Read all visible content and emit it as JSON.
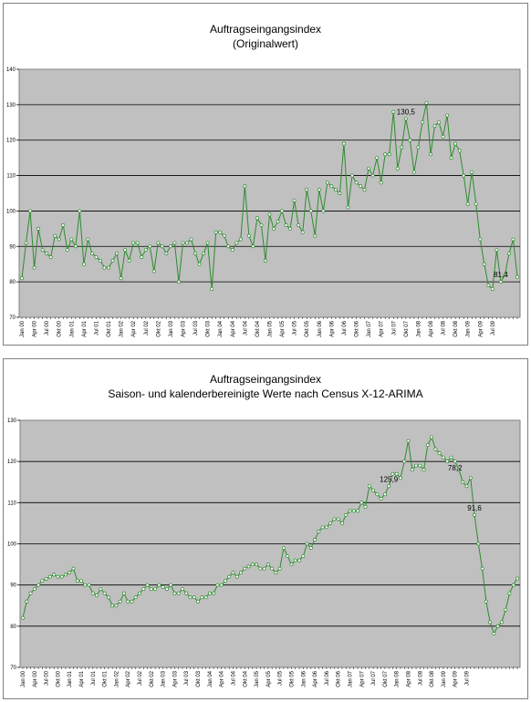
{
  "chart_data": [
    {
      "type": "line",
      "title": "Auftragseingangsindex",
      "subtitle": "(Originalwert)",
      "ylim": [
        70,
        140
      ],
      "yticks": [
        70,
        80,
        90,
        100,
        110,
        120,
        130,
        140
      ],
      "grid": true,
      "colors": {
        "line": "#2e8b2e",
        "marker_fill": "#ffffff",
        "plot_bg": "#c0c0c0",
        "grid": "#000000"
      },
      "xtick_labels": [
        "Jan 00",
        "Apr 00",
        "Jul 00",
        "Okt 00",
        "Jan 01",
        "Apr 01",
        "Jul 01",
        "Okt 01",
        "Jan 02",
        "Apr 02",
        "Jul 02",
        "Okt 02",
        "Jan 03",
        "Apr 03",
        "Jul 03",
        "Okt 03",
        "Jan 04",
        "Apr 04",
        "Jul 04",
        "Okt 04",
        "Jan 05",
        "Apr 05",
        "Jul 05",
        "Okt 05",
        "Jan 06",
        "Apr 06",
        "Jul 06",
        "Okt 06",
        "Jan 07",
        "Apr 07",
        "Jul 07",
        "Okt 07",
        "Jan 08",
        "Apr 08",
        "Jul 08",
        "Okt 08",
        "Jan 09",
        "Apr 09",
        "Jul 09"
      ],
      "annotations": [
        {
          "label": "130,5",
          "index": 93
        },
        {
          "label": "81,4",
          "index": 116
        }
      ],
      "series": [
        {
          "values": [
            81,
            91,
            100,
            84,
            95,
            89,
            88,
            87,
            93,
            92,
            96,
            89,
            92,
            90,
            100,
            85,
            92,
            88,
            87,
            86,
            84,
            84,
            86,
            88,
            81,
            89,
            86,
            91,
            91,
            87,
            89,
            90,
            83,
            91,
            90,
            88,
            90,
            91,
            80,
            91,
            91,
            92,
            88,
            85,
            88,
            91,
            78,
            94,
            94,
            93,
            90,
            89,
            91,
            92,
            107,
            93,
            90,
            98,
            96,
            86,
            99,
            95,
            97,
            100,
            96,
            95,
            103,
            96,
            94,
            106,
            100,
            93,
            106,
            100,
            108,
            107,
            106,
            105,
            119,
            101,
            110,
            108,
            107,
            106,
            112,
            110,
            115,
            108,
            116,
            116,
            128,
            112,
            118,
            126,
            120,
            111,
            118,
            125,
            130.5,
            116,
            124,
            125,
            121,
            127,
            115,
            119,
            117,
            110,
            102,
            111,
            102,
            92,
            85,
            79,
            78,
            89,
            80,
            82,
            88,
            92,
            81.4
          ]
        }
      ]
    },
    {
      "type": "line",
      "title": "Auftragseingangsindex",
      "subtitle": "Saison- und kalenderbereinigte Werte nach Census X-12-ARIMA",
      "ylim": [
        70,
        130
      ],
      "yticks": [
        70,
        80,
        90,
        100,
        110,
        120,
        130
      ],
      "grid": true,
      "colors": {
        "line": "#2e8b2e",
        "marker_fill": "#ffffff",
        "plot_bg": "#c0c0c0",
        "grid": "#000000"
      },
      "xtick_labels": [
        "Jan 00",
        "Apr 00",
        "Jul 00",
        "Okt 00",
        "Jan 01",
        "Apr 01",
        "Jul 01",
        "Okt 01",
        "Jan 02",
        "Apr 02",
        "Jul 02",
        "Okt 02",
        "Jan 03",
        "Apr 03",
        "Jul 03",
        "Okt 03",
        "Jan 04",
        "Apr 04",
        "Jul 04",
        "Okt 04",
        "Jan 05",
        "Apr 05",
        "Jul 05",
        "Okt 05",
        "Jan 06",
        "Apr 06",
        "Jul 06",
        "Okt 06",
        "Jan 07",
        "Apr 07",
        "Jul 07",
        "Okt 07",
        "Jan 08",
        "Apr 08",
        "Jul 08",
        "Okt 08",
        "Jan 09",
        "Apr 09",
        "Jul 09"
      ],
      "annotations": [
        {
          "label": "125,9",
          "index": 94,
          "position": "above"
        },
        {
          "label": "78,2",
          "index": 111,
          "position": "below"
        },
        {
          "label": "91,6",
          "index": 116,
          "position": "above"
        }
      ],
      "series": [
        {
          "values": [
            82,
            86,
            88,
            89,
            90,
            91,
            91.5,
            92,
            92.5,
            92,
            92,
            92.5,
            93,
            94,
            91,
            91,
            90,
            90,
            88,
            87.5,
            89,
            88,
            87,
            85,
            85,
            86,
            88,
            86,
            86,
            87,
            88,
            89,
            90,
            89,
            89,
            90,
            89.5,
            89,
            90,
            88,
            88,
            89,
            88,
            87,
            87,
            86,
            87,
            87,
            88,
            88,
            90,
            90,
            91,
            92,
            93,
            92,
            93,
            94,
            94.5,
            95,
            95,
            94,
            94,
            95,
            94,
            93,
            94,
            99,
            97,
            95,
            96,
            96,
            97,
            100,
            99,
            101,
            103,
            104,
            104,
            105,
            106,
            106,
            105,
            107,
            108,
            108,
            108,
            110,
            109,
            114,
            113,
            112,
            111,
            112,
            114,
            117,
            117,
            116,
            120,
            125,
            118,
            119,
            119,
            118,
            124,
            125.9,
            123,
            122,
            121,
            120,
            121,
            120,
            118,
            115,
            114,
            116,
            107,
            100,
            94,
            86,
            81,
            78.2,
            80,
            81,
            84,
            88,
            90,
            91.6
          ]
        }
      ]
    }
  ]
}
